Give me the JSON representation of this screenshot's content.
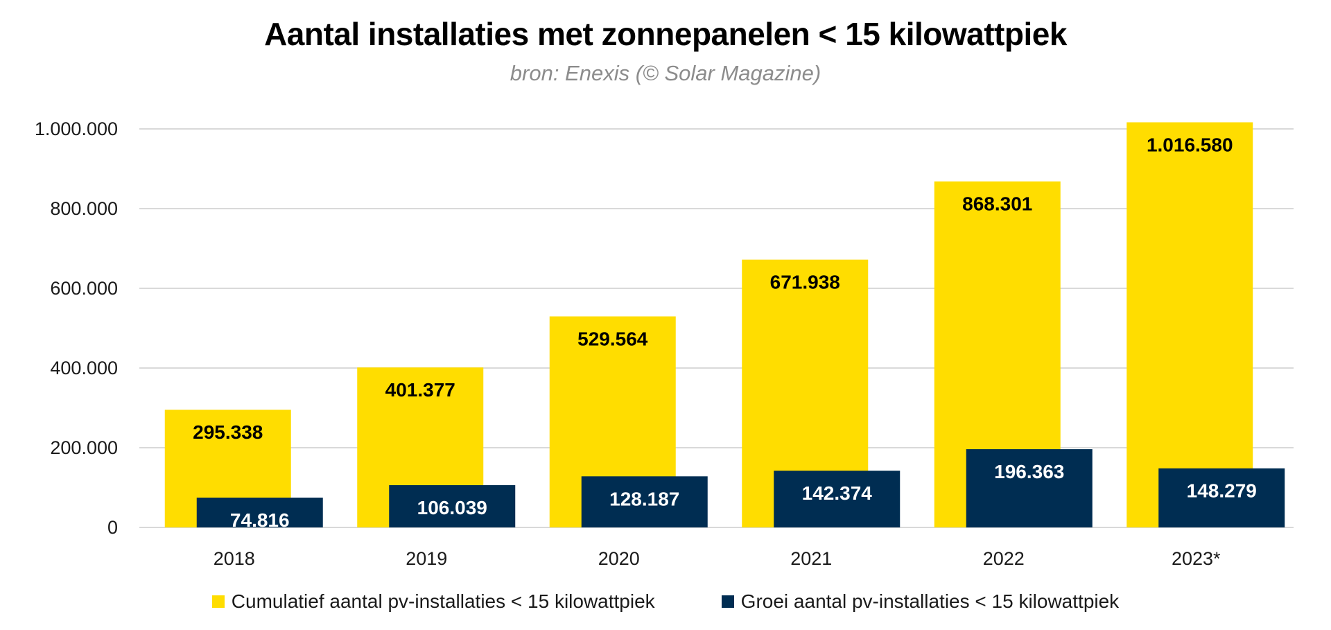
{
  "chart_data": {
    "type": "bar",
    "title": "Aantal installaties met zonnepanelen < 15 kilowattpiek",
    "subtitle": "bron: Enexis (© Solar Magazine)",
    "xlabel": "",
    "ylabel": "",
    "categories": [
      "2018",
      "2019",
      "2020",
      "2021",
      "2022",
      "2023*"
    ],
    "series": [
      {
        "name": "Cumulatief aantal pv-installaties < 15 kilowattpiek",
        "color": "#FFDD00",
        "label_color": "#000000",
        "values": [
          295338,
          401377,
          529564,
          671938,
          868301,
          1016580
        ],
        "labels": [
          "295.338",
          "401.377",
          "529.564",
          "671.938",
          "868.301",
          "1.016.580"
        ]
      },
      {
        "name": "Groei aantal pv-installaties < 15 kilowattpiek",
        "color": "#002D52",
        "label_color": "#FFFFFF",
        "values": [
          74816,
          106039,
          128187,
          142374,
          196363,
          148279
        ],
        "labels": [
          "74.816",
          "106.039",
          "128.187",
          "142.374",
          "196.363",
          "148.279"
        ]
      }
    ],
    "ylim": [
      0,
      1000000
    ],
    "yticks": [
      0,
      200000,
      400000,
      600000,
      800000,
      1000000
    ],
    "ytick_labels": [
      "0",
      "200.000",
      "400.000",
      "600.000",
      "800.000",
      "1.000.000"
    ],
    "grid": true,
    "legend_position": "bottom",
    "gridline_color": "#D9D9D9"
  }
}
